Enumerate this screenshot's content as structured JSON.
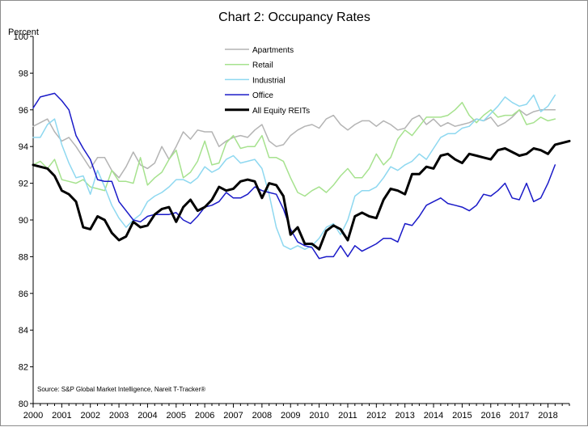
{
  "chart_data": {
    "type": "line",
    "title": "Chart 2: Occupancy Rates",
    "ylabel": "Percent",
    "xlabel": "",
    "ylim": [
      80,
      100
    ],
    "yticks": [
      80,
      82,
      84,
      86,
      88,
      90,
      92,
      94,
      96,
      98,
      100
    ],
    "xlim": [
      2000,
      2018.75
    ],
    "xticks": [
      2000,
      2001,
      2002,
      2003,
      2004,
      2005,
      2006,
      2007,
      2008,
      2009,
      2010,
      2011,
      2012,
      2013,
      2014,
      2015,
      2016,
      2017,
      2018
    ],
    "grid": false,
    "legend_position": "top-center",
    "source": "Source: S&P Global Market Intelligence, Nareit T-Tracker®",
    "series": [
      {
        "name": "Apartments",
        "color": "#b4b4b4",
        "width": 1.5,
        "values": [
          95.1,
          95.3,
          95.5,
          94.8,
          94.3,
          94.5,
          94.0,
          93.4,
          92.8,
          93.4,
          93.4,
          92.7,
          92.3,
          92.9,
          93.7,
          93.0,
          92.8,
          93.1,
          94.0,
          93.3,
          94.0,
          94.8,
          94.4,
          94.9,
          94.8,
          94.8,
          94.0,
          94.3,
          94.5,
          94.6,
          94.5,
          94.9,
          95.2,
          94.3,
          94.0,
          94.1,
          94.6,
          94.9,
          95.1,
          95.2,
          95.0,
          95.5,
          95.7,
          95.2,
          94.9,
          95.2,
          95.4,
          95.4,
          95.1,
          95.4,
          95.2,
          94.9,
          95.0,
          95.5,
          95.7,
          95.2,
          95.5,
          95.1,
          95.3,
          95.1,
          95.2,
          95.3,
          95.5,
          95.4,
          95.6,
          95.1,
          95.3,
          95.6,
          96.0,
          95.7,
          95.9,
          96.0,
          96.0,
          96.0
        ]
      },
      {
        "name": "Retail",
        "color": "#a6e28e",
        "width": 1.5,
        "values": [
          93.0,
          93.2,
          92.8,
          93.3,
          92.2,
          92.1,
          92.0,
          92.2,
          91.8,
          91.7,
          91.6,
          92.7,
          92.1,
          92.1,
          92.0,
          93.4,
          91.9,
          92.3,
          92.6,
          93.3,
          93.8,
          92.3,
          92.6,
          93.2,
          94.3,
          93.0,
          93.1,
          94.2,
          94.6,
          93.9,
          94.0,
          94.0,
          94.6,
          93.4,
          93.4,
          93.2,
          92.3,
          91.5,
          91.3,
          91.6,
          91.8,
          91.5,
          91.9,
          92.4,
          92.8,
          92.3,
          92.3,
          92.8,
          93.6,
          93.0,
          93.4,
          94.4,
          94.9,
          94.6,
          95.1,
          95.6,
          95.6,
          95.6,
          95.7,
          96.0,
          96.4,
          95.7,
          95.3,
          95.7,
          96.0,
          95.6,
          95.7,
          95.7,
          96.0,
          95.2,
          95.3,
          95.6,
          95.4,
          95.5
        ]
      },
      {
        "name": "Industrial",
        "color": "#8ed8f0",
        "width": 1.5,
        "values": [
          94.5,
          94.5,
          95.2,
          95.5,
          94.1,
          93.1,
          92.3,
          92.4,
          91.4,
          92.7,
          91.8,
          90.8,
          90.1,
          89.6,
          90.0,
          90.3,
          91.0,
          91.3,
          91.5,
          91.8,
          92.2,
          92.2,
          92.0,
          92.3,
          92.9,
          92.6,
          92.8,
          93.3,
          93.5,
          93.1,
          93.2,
          93.3,
          92.8,
          91.4,
          89.6,
          88.6,
          88.4,
          88.6,
          88.4,
          88.6,
          89.0,
          89.6,
          89.8,
          89.2,
          90.0,
          91.3,
          91.6,
          91.6,
          91.8,
          92.3,
          92.9,
          92.7,
          93.0,
          93.2,
          93.6,
          93.3,
          93.9,
          94.5,
          94.7,
          94.7,
          95.0,
          95.1,
          95.5,
          95.4,
          95.8,
          96.2,
          96.7,
          96.4,
          96.2,
          96.3,
          96.8,
          95.9,
          96.2,
          96.8
        ]
      },
      {
        "name": "Office",
        "color": "#1a1ac8",
        "width": 1.5,
        "values": [
          96.1,
          96.7,
          96.8,
          96.9,
          96.5,
          96.0,
          94.6,
          93.9,
          93.3,
          92.2,
          92.1,
          92.1,
          91.0,
          90.5,
          90.0,
          89.9,
          90.2,
          90.3,
          90.3,
          90.3,
          90.4,
          90.0,
          89.8,
          90.2,
          90.7,
          90.8,
          91.0,
          91.5,
          91.2,
          91.2,
          91.4,
          91.8,
          91.6,
          91.5,
          91.4,
          90.6,
          89.5,
          88.8,
          88.6,
          88.5,
          87.9,
          88.0,
          88.0,
          88.6,
          88.0,
          88.6,
          88.3,
          88.5,
          88.7,
          89.0,
          89.0,
          88.8,
          89.8,
          89.7,
          90.2,
          90.8,
          91.0,
          91.2,
          90.9,
          90.8,
          90.7,
          90.5,
          90.8,
          91.4,
          91.3,
          91.6,
          92.0,
          91.2,
          91.1,
          92.0,
          91.0,
          91.2,
          92.0,
          93.0
        ]
      },
      {
        "name": "All Equity REITs",
        "color": "#000000",
        "width": 3,
        "values": [
          93.0,
          92.9,
          92.8,
          92.4,
          91.6,
          91.4,
          91.0,
          89.6,
          89.5,
          90.2,
          90.0,
          89.3,
          88.9,
          89.1,
          89.9,
          89.6,
          89.7,
          90.3,
          90.6,
          90.7,
          89.9,
          90.7,
          91.1,
          90.5,
          90.7,
          91.1,
          91.8,
          91.6,
          91.7,
          92.1,
          92.2,
          92.1,
          91.2,
          92.0,
          91.9,
          91.3,
          89.2,
          89.6,
          88.7,
          88.7,
          88.4,
          89.4,
          89.7,
          89.5,
          88.9,
          90.2,
          90.4,
          90.2,
          90.1,
          91.1,
          91.7,
          91.6,
          91.4,
          92.5,
          92.5,
          92.9,
          92.8,
          93.5,
          93.6,
          93.3,
          93.1,
          93.6,
          93.5,
          93.4,
          93.3,
          93.8,
          93.9,
          93.7,
          93.5,
          93.6,
          93.9,
          93.8,
          93.6,
          94.1,
          94.2,
          94.3
        ]
      }
    ]
  }
}
